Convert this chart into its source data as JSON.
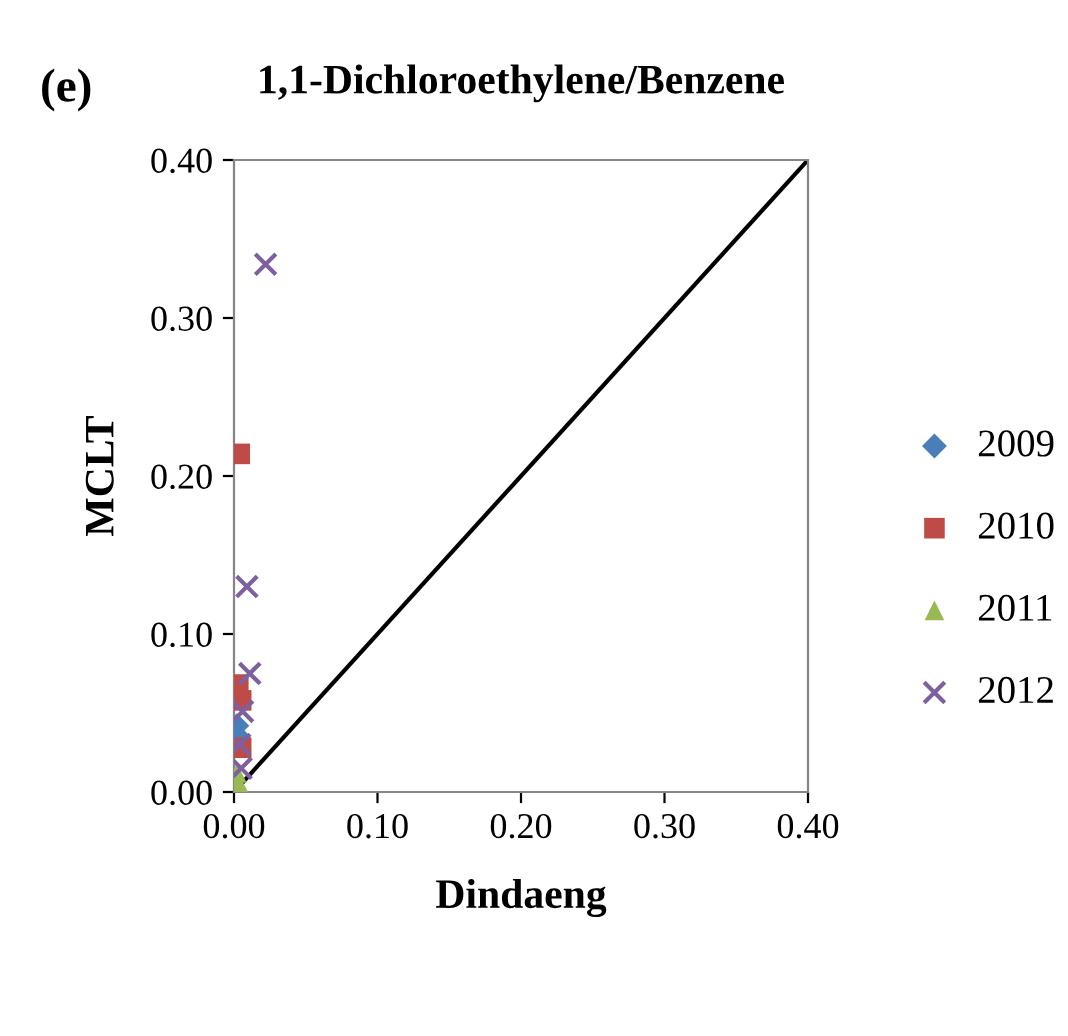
{
  "chart_data": {
    "type": "scatter",
    "title": "1,1-Dichloroethylene/Benzene",
    "xlabel": "Dindaeng",
    "ylabel": "MCLT",
    "annotations": [
      "(e)"
    ],
    "xlim": [
      0,
      0.4
    ],
    "ylim": [
      0,
      0.4
    ],
    "xticks": [
      {
        "value": 0,
        "label": "0.00"
      },
      {
        "value": 0.1,
        "label": "0.10"
      },
      {
        "value": 0.2,
        "label": "0.20"
      },
      {
        "value": 0.3,
        "label": "0.30"
      },
      {
        "value": 0.4,
        "label": "0.40"
      }
    ],
    "yticks": [
      {
        "value": 0,
        "label": "0.00"
      },
      {
        "value": 0.1,
        "label": "0.10"
      },
      {
        "value": 0.2,
        "label": "0.20"
      },
      {
        "value": 0.3,
        "label": "0.30"
      },
      {
        "value": 0.4,
        "label": "0.40"
      }
    ],
    "grid": false,
    "legend": "right",
    "series": [
      {
        "name": "2009",
        "color": "#4a7ebb",
        "marker": "diamond",
        "x": [
          0.002,
          0.003
        ],
        "values": [
          0.042,
          0.035
        ]
      },
      {
        "name": "2010",
        "color": "#be4b48",
        "marker": "square",
        "x": [
          0.004,
          0.003,
          0.005,
          0.005
        ],
        "values": [
          0.214,
          0.068,
          0.058,
          0.028
        ]
      },
      {
        "name": "2011",
        "color": "#98b954",
        "marker": "triangle",
        "x": [
          0.002,
          0.003
        ],
        "values": [
          0.012,
          0.006
        ]
      },
      {
        "name": "2012",
        "color": "#7d60a0",
        "marker": "cross",
        "x": [
          0.022,
          0.009,
          0.011,
          0.006,
          0.004,
          0.005
        ],
        "values": [
          0.334,
          0.13,
          0.075,
          0.051,
          0.03,
          0.015
        ]
      },
      {
        "type": "line",
        "color": "#000000",
        "marker": "none",
        "x": [
          0,
          0.4
        ],
        "values": [
          0,
          0.4
        ]
      }
    ]
  }
}
